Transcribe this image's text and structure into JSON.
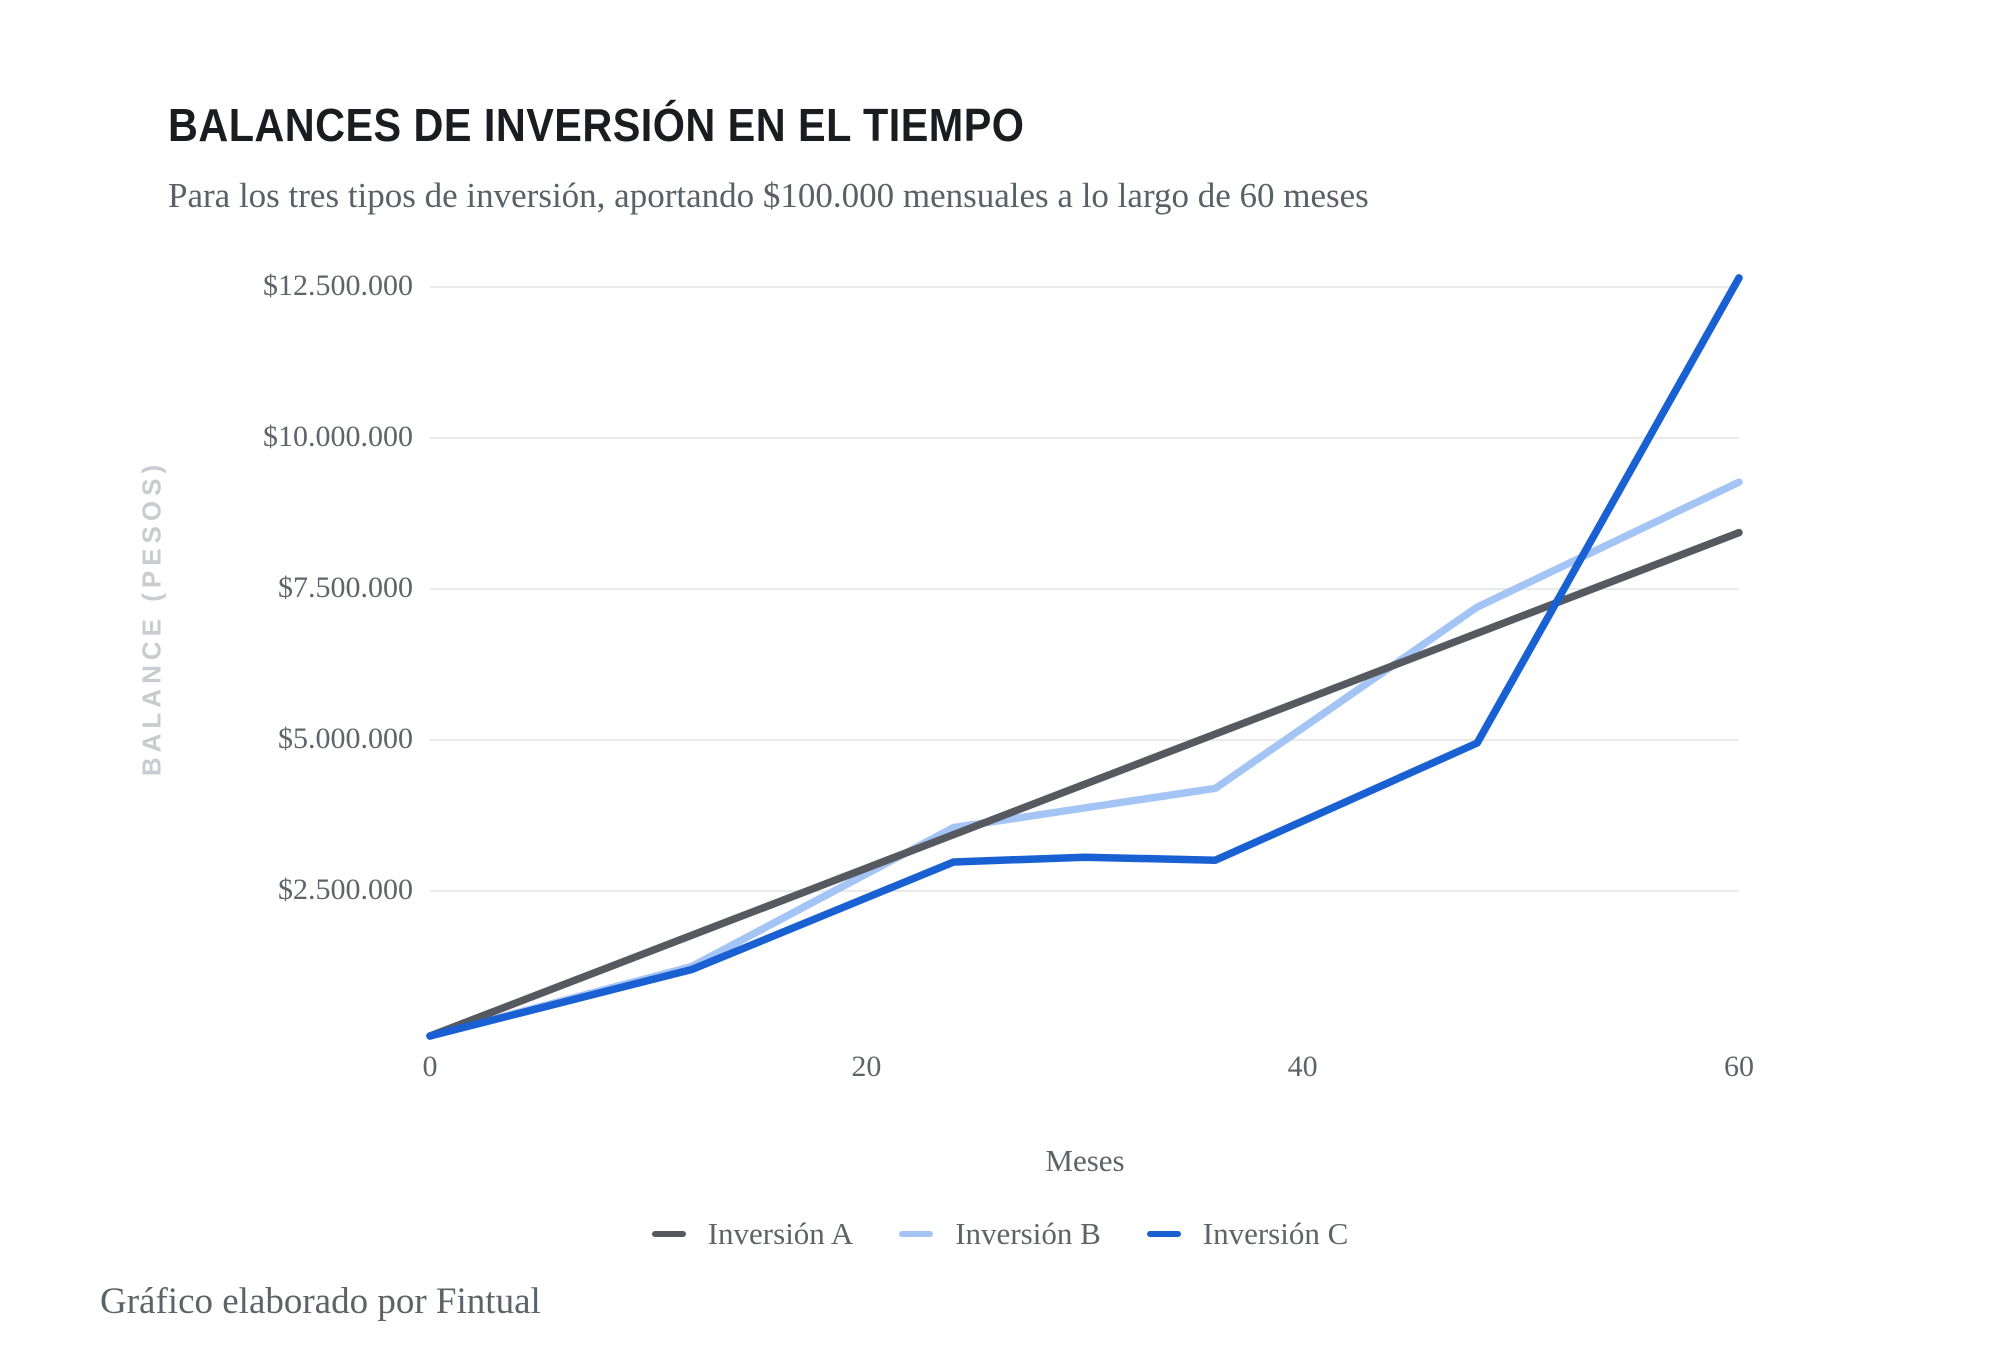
{
  "header": {
    "title": "BALANCES DE INVERSIÓN EN EL TIEMPO",
    "subtitle": "Para los tres tipos de inversión, aportando $100.000 mensuales a lo largo de 60 meses"
  },
  "footer": {
    "credit": "Gráfico elaborado por Fintual"
  },
  "colors": {
    "series_a": "#56595f",
    "series_b": "#a5c4f6",
    "series_c": "#1960d3",
    "gridline": "#e9eaeb",
    "tick_text": "#606468",
    "axis_title_y": "#c9cbcf",
    "background": "#ffffff"
  },
  "chart_data": {
    "type": "line",
    "title": "BALANCES DE INVERSIÓN EN EL TIEMPO",
    "subtitle": "Para los tres tipos de inversión, aportando $100.000 mensuales a lo largo de 60 meses",
    "xlabel": "Meses",
    "ylabel": "BALANCE (PESOS)",
    "xlim": [
      0,
      60
    ],
    "ylim": [
      0,
      13200000
    ],
    "x_ticks": [
      0,
      20,
      40,
      60
    ],
    "y_ticks": [
      {
        "value": 2500000,
        "label": "$2.500.000"
      },
      {
        "value": 5000000,
        "label": "$5.000.000"
      },
      {
        "value": 7500000,
        "label": "$7.500.000"
      },
      {
        "value": 10000000,
        "label": "$10.000.000"
      },
      {
        "value": 12500000,
        "label": "$12.500.000"
      }
    ],
    "grid": "horizontal-only",
    "legend_position": "bottom",
    "series": [
      {
        "name": "Inversión A",
        "color": "#56595f",
        "x": [
          0,
          12,
          24,
          36,
          48,
          60
        ],
        "values": [
          100000,
          1766667,
          3433333,
          5100000,
          6766667,
          8433333
        ]
      },
      {
        "name": "Inversión B",
        "color": "#a5c4f6",
        "x": [
          0,
          12,
          24,
          36,
          48,
          60
        ],
        "values": [
          100000,
          1250000,
          3550000,
          4200000,
          7200000,
          9270000
        ]
      },
      {
        "name": "Inversión C",
        "color": "#1960d3",
        "x": [
          0,
          12,
          24,
          30,
          36,
          48,
          60
        ],
        "values": [
          100000,
          1200000,
          2980000,
          3060000,
          3010000,
          4950000,
          12650000
        ]
      }
    ]
  }
}
